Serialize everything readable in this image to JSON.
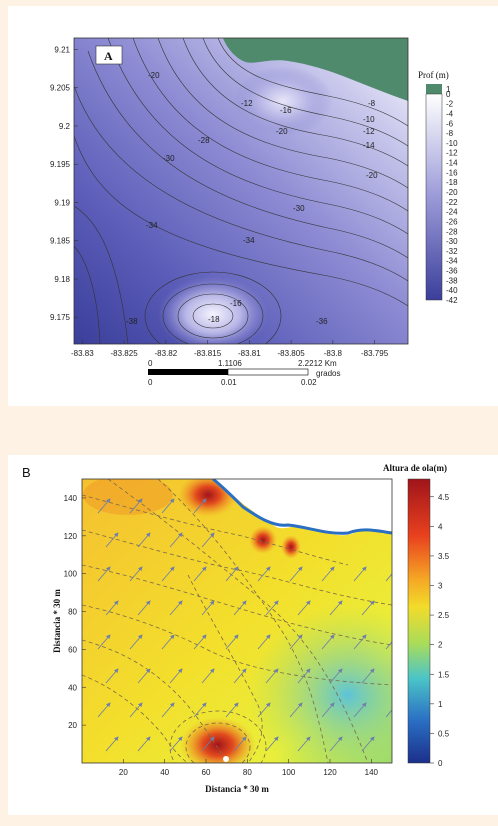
{
  "chart_data": [
    {
      "type": "contour",
      "panel_label": "A",
      "colorbar_title": "Prof (m)",
      "colorbar_levels": [
        1,
        0,
        -2,
        -4,
        -6,
        -8,
        -10,
        -12,
        -14,
        -16,
        -18,
        -20,
        -22,
        -24,
        -26,
        -28,
        -30,
        -32,
        -34,
        -36,
        -38,
        -40,
        -42
      ],
      "x_ticks": [
        "-83.83",
        "-83.825",
        "-83.82",
        "-83.815",
        "-83.81",
        "-83.805",
        "-83.8",
        "-83.795"
      ],
      "y_ticks": [
        "9.21",
        "9.205",
        "9.2",
        "9.195",
        "9.19",
        "9.185",
        "9.18",
        "9.175"
      ],
      "xlim": [
        -83.831,
        -83.791
      ],
      "ylim": [
        9.1715,
        9.2115
      ],
      "contour_labels": [
        "-20",
        "-12",
        "-16",
        "-20",
        "-28",
        "-30",
        "-34",
        "-34",
        "-38",
        "-16",
        "-18",
        "-36",
        "-30",
        "-8",
        "-10",
        "-12",
        "-14",
        "-20"
      ],
      "scale_bar": {
        "km_labels": [
          "0",
          "1.1106",
          "2.2212 Km"
        ],
        "deg_labels": [
          "0",
          "0.01",
          "0.02"
        ],
        "deg_unit": "grados"
      },
      "colors": {
        "land": "#4f8a6c",
        "shallow": "#ffffff",
        "deep": "#3b3f9a"
      }
    },
    {
      "type": "heatmap",
      "panel_label": "B",
      "colorbar_title": "Altura de ola(m)",
      "colorbar_ticks": [
        "4.5",
        "4",
        "3.5",
        "3",
        "2.5",
        "2",
        "1.5",
        "1",
        "0.5",
        "0"
      ],
      "xlabel": "Distancia * 30 m",
      "ylabel": "Distancia * 30 m",
      "x_ticks": [
        "20",
        "40",
        "60",
        "80",
        "100",
        "120",
        "140"
      ],
      "y_ticks": [
        "140",
        "120",
        "100",
        "80",
        "60",
        "40",
        "20"
      ],
      "xlim": [
        0,
        150
      ],
      "ylim": [
        0,
        150
      ],
      "clim": [
        0,
        4.8
      ],
      "colors": {
        "high": "#a0141b",
        "mid": "#f2dc2a",
        "low": "#1c2f8a"
      }
    }
  ]
}
